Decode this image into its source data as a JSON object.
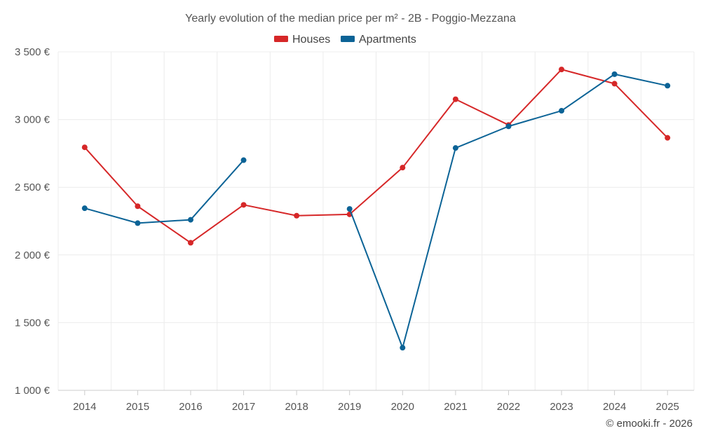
{
  "chart_data": {
    "type": "line",
    "title": "Yearly evolution of the median price per m² - 2B - Poggio-Mezzana",
    "categories": [
      "2014",
      "2015",
      "2016",
      "2017",
      "2018",
      "2019",
      "2020",
      "2021",
      "2022",
      "2023",
      "2024",
      "2025"
    ],
    "y_ticks": [
      1000,
      1500,
      2000,
      2500,
      3000,
      3500
    ],
    "y_tick_labels": [
      "1 000 €",
      "1 500 €",
      "2 000 €",
      "2 500 €",
      "3 000 €",
      "3 500 €"
    ],
    "ylim": [
      1000,
      3500
    ],
    "grid": true,
    "legend_position": "top-center",
    "series": [
      {
        "name": "Houses",
        "color": "#d62728",
        "values": [
          2795,
          2360,
          2090,
          2370,
          2290,
          2300,
          2645,
          3150,
          2960,
          3370,
          3265,
          2865
        ]
      },
      {
        "name": "Apartments",
        "color": "#0b6396",
        "values": [
          2345,
          2235,
          2260,
          2700,
          null,
          2340,
          1315,
          2790,
          2950,
          3065,
          3335,
          3250
        ]
      }
    ],
    "credit": "© emooki.fr - 2026"
  }
}
